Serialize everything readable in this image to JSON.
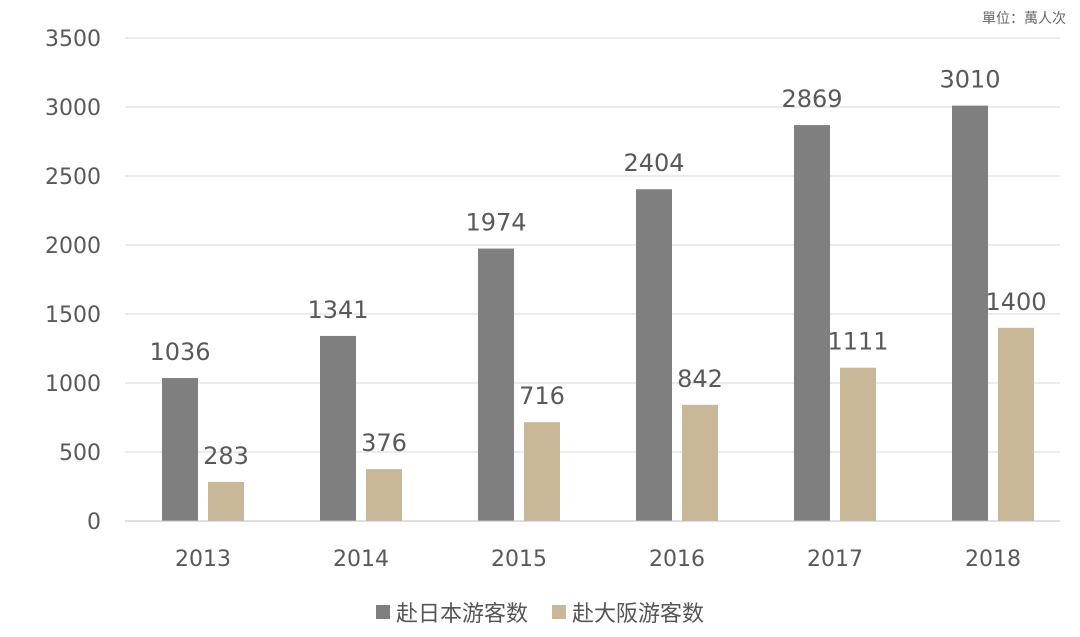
{
  "chart_data": {
    "type": "bar",
    "unit_label": "單位：萬人次",
    "categories": [
      "2013",
      "2014",
      "2015",
      "2016",
      "2017",
      "2018"
    ],
    "series": [
      {
        "name": "赴日本游客数",
        "color": "#7f7f7f",
        "values": [
          1036,
          1341,
          1974,
          2404,
          2869,
          3010
        ]
      },
      {
        "name": "赴大阪游客数",
        "color": "#c9b897",
        "values": [
          283,
          376,
          716,
          842,
          1111,
          1400
        ]
      }
    ],
    "yticks": [
      "0",
      "500",
      "1000",
      "1500",
      "2000",
      "2500",
      "3000",
      "3500"
    ],
    "ylim": [
      0,
      3500
    ],
    "grid": true,
    "legend_position": "bottom"
  }
}
